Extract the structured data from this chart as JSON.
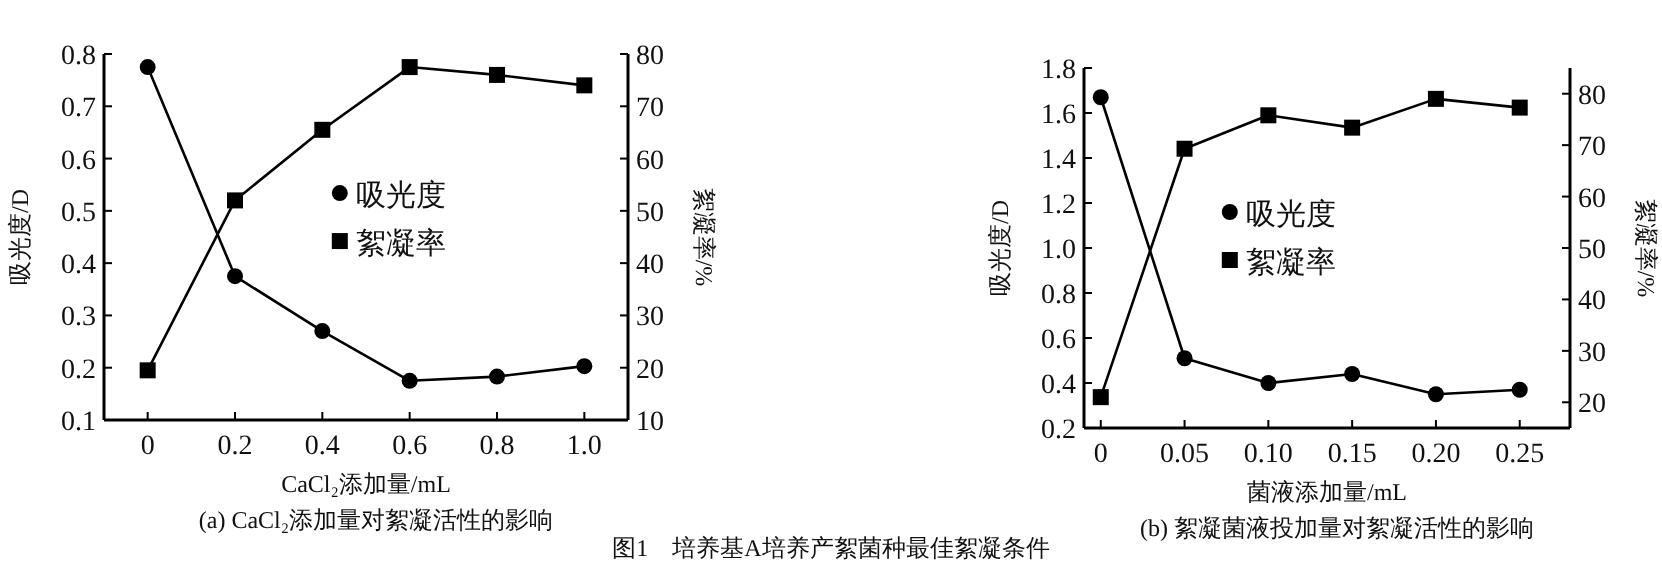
{
  "chart_data": [
    {
      "type": "line",
      "xlabel": "CaCl₂添加量/mL",
      "ylabel": "吸光度/D",
      "y2label": "絮凝率/%",
      "x": [
        0,
        0.2,
        0.4,
        0.6,
        0.8,
        1.0
      ],
      "xlim": [
        -0.1,
        1.1
      ],
      "xticks": [
        0,
        0.2,
        0.4,
        0.6,
        0.8,
        {
          "value": 1.0,
          "label": "1.0"
        }
      ],
      "ylim": [
        0.1,
        0.8
      ],
      "yticks": [
        0.1,
        0.2,
        0.3,
        0.4,
        0.5,
        0.6,
        0.7,
        0.8
      ],
      "y2lim": [
        10,
        80
      ],
      "y2ticks": [
        10,
        20,
        30,
        40,
        50,
        60,
        70,
        80
      ],
      "legend": "center",
      "grid": false,
      "series": [
        {
          "name": "吸光度",
          "color": "#000000",
          "marker": "circle",
          "values": [
            0.775,
            0.375,
            0.27,
            0.175,
            0.183,
            0.203
          ]
        },
        {
          "name": "絮凝率",
          "color": "#000000",
          "marker": "square",
          "axis": "y2",
          "values": [
            19.5,
            52,
            65.5,
            77.5,
            76,
            74
          ]
        }
      ],
      "annotations": [
        "(a) CaCl₂添加量对絮凝活性的影响",
        "图1　培养基A培养产絮菌种最佳絮凝条件"
      ]
    },
    {
      "type": "line",
      "xlabel": "菌液添加量/mL",
      "ylabel": "吸光度/D",
      "y2label": "絮凝率/%",
      "x": [
        0,
        0.05,
        0.1,
        0.15,
        0.2,
        0.25
      ],
      "xlim": [
        -0.01,
        0.28
      ],
      "xticks": [
        0,
        0.05,
        {
          "value": 0.1,
          "label": "0.10"
        },
        0.15,
        {
          "value": 0.2,
          "label": "0.20"
        },
        0.25
      ],
      "ylim": [
        0.2,
        1.8
      ],
      "yticks": [
        0.2,
        0.4,
        0.6,
        0.8,
        {
          "value": 1.0,
          "label": "1.0"
        },
        1.2,
        1.4,
        1.6,
        1.8
      ],
      "y2lim": [
        15,
        85
      ],
      "y2ticks": [
        20,
        30,
        40,
        50,
        60,
        70,
        80
      ],
      "legend": "center left",
      "grid": false,
      "series": [
        {
          "name": "吸光度",
          "color": "#000000",
          "marker": "circle",
          "values": [
            1.67,
            0.51,
            0.4,
            0.44,
            0.35,
            0.37
          ]
        },
        {
          "name": "絮凝率",
          "color": "#000000",
          "marker": "square",
          "axis": "y2",
          "values": [
            21,
            69.3,
            75.8,
            73.4,
            79,
            77.3
          ]
        }
      ],
      "annotations": [
        "(b) 絮凝菌液投加量对絮凝活性的影响"
      ]
    }
  ]
}
